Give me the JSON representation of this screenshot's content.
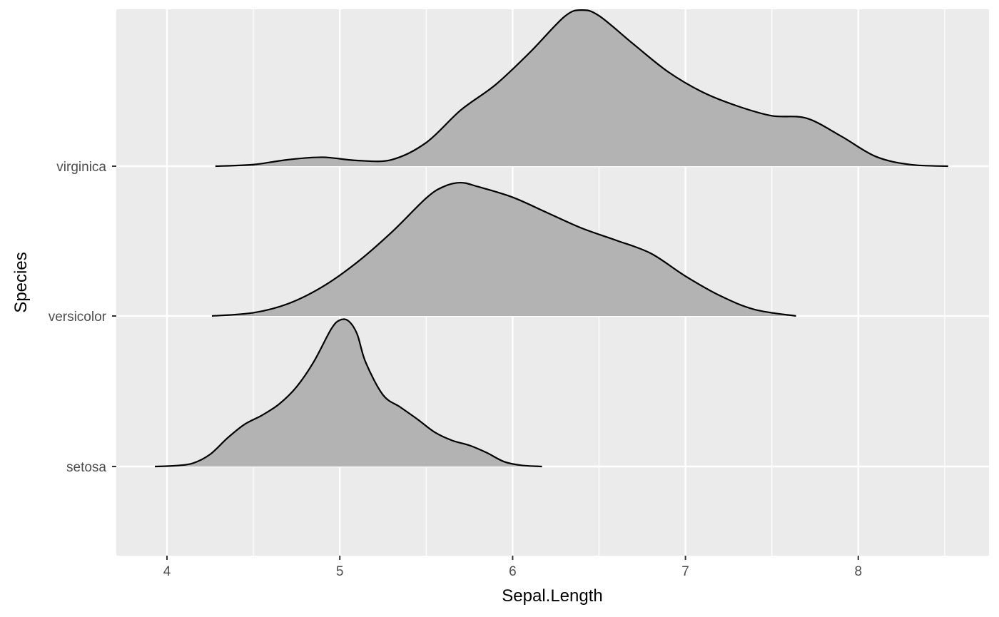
{
  "chart_data": {
    "type": "ridgeline",
    "xlabel": "Sepal.Length",
    "ylabel": "Species",
    "xlim": [
      3.7,
      8.74
    ],
    "x_ticks": [
      4,
      5,
      6,
      7,
      8
    ],
    "x_tick_labels": [
      "4",
      "5",
      "6",
      "7",
      "8"
    ],
    "categories": [
      "setosa",
      "versicolor",
      "virginica"
    ],
    "grid": true,
    "fill_color": "#b3b3b3",
    "line_color": "#000000",
    "panel_color": "#ebebeb",
    "grid_color": "#ffffff",
    "series": [
      {
        "name": "setosa",
        "points": [
          [
            3.93,
            0.0
          ],
          [
            4.05,
            0.1
          ],
          [
            4.15,
            0.4
          ],
          [
            4.25,
            1.5
          ],
          [
            4.35,
            3.5
          ],
          [
            4.45,
            5.2
          ],
          [
            4.55,
            6.3
          ],
          [
            4.65,
            7.7
          ],
          [
            4.75,
            9.8
          ],
          [
            4.85,
            12.9
          ],
          [
            4.95,
            16.9
          ],
          [
            5.0,
            18.0
          ],
          [
            5.05,
            17.9
          ],
          [
            5.1,
            16.3
          ],
          [
            5.15,
            12.8
          ],
          [
            5.25,
            8.8
          ],
          [
            5.35,
            7.3
          ],
          [
            5.45,
            5.8
          ],
          [
            5.55,
            4.2
          ],
          [
            5.65,
            3.2
          ],
          [
            5.75,
            2.6
          ],
          [
            5.85,
            1.7
          ],
          [
            5.95,
            0.6
          ],
          [
            6.05,
            0.15
          ],
          [
            6.17,
            0.0
          ]
        ]
      },
      {
        "name": "versicolor",
        "points": [
          [
            4.26,
            0.0
          ],
          [
            4.5,
            0.4
          ],
          [
            4.7,
            1.5
          ],
          [
            4.9,
            3.6
          ],
          [
            5.1,
            6.6
          ],
          [
            5.3,
            10.3
          ],
          [
            5.5,
            14.5
          ],
          [
            5.6,
            15.9
          ],
          [
            5.7,
            16.4
          ],
          [
            5.8,
            15.9
          ],
          [
            6.0,
            14.6
          ],
          [
            6.2,
            12.7
          ],
          [
            6.4,
            10.8
          ],
          [
            6.6,
            9.3
          ],
          [
            6.8,
            7.7
          ],
          [
            7.0,
            4.9
          ],
          [
            7.2,
            2.5
          ],
          [
            7.4,
            0.8
          ],
          [
            7.64,
            0.0
          ]
        ]
      },
      {
        "name": "virginica",
        "points": [
          [
            4.28,
            0.0
          ],
          [
            4.5,
            0.2
          ],
          [
            4.7,
            0.8
          ],
          [
            4.9,
            1.1
          ],
          [
            5.1,
            0.7
          ],
          [
            5.3,
            0.8
          ],
          [
            5.5,
            2.9
          ],
          [
            5.7,
            6.9
          ],
          [
            5.9,
            10.0
          ],
          [
            6.1,
            14.0
          ],
          [
            6.3,
            18.4
          ],
          [
            6.4,
            19.2
          ],
          [
            6.5,
            18.5
          ],
          [
            6.7,
            15.0
          ],
          [
            6.9,
            11.6
          ],
          [
            7.1,
            9.1
          ],
          [
            7.3,
            7.4
          ],
          [
            7.5,
            6.2
          ],
          [
            7.7,
            5.9
          ],
          [
            7.9,
            3.7
          ],
          [
            8.1,
            1.2
          ],
          [
            8.3,
            0.2
          ],
          [
            8.52,
            0.0
          ]
        ]
      }
    ]
  }
}
